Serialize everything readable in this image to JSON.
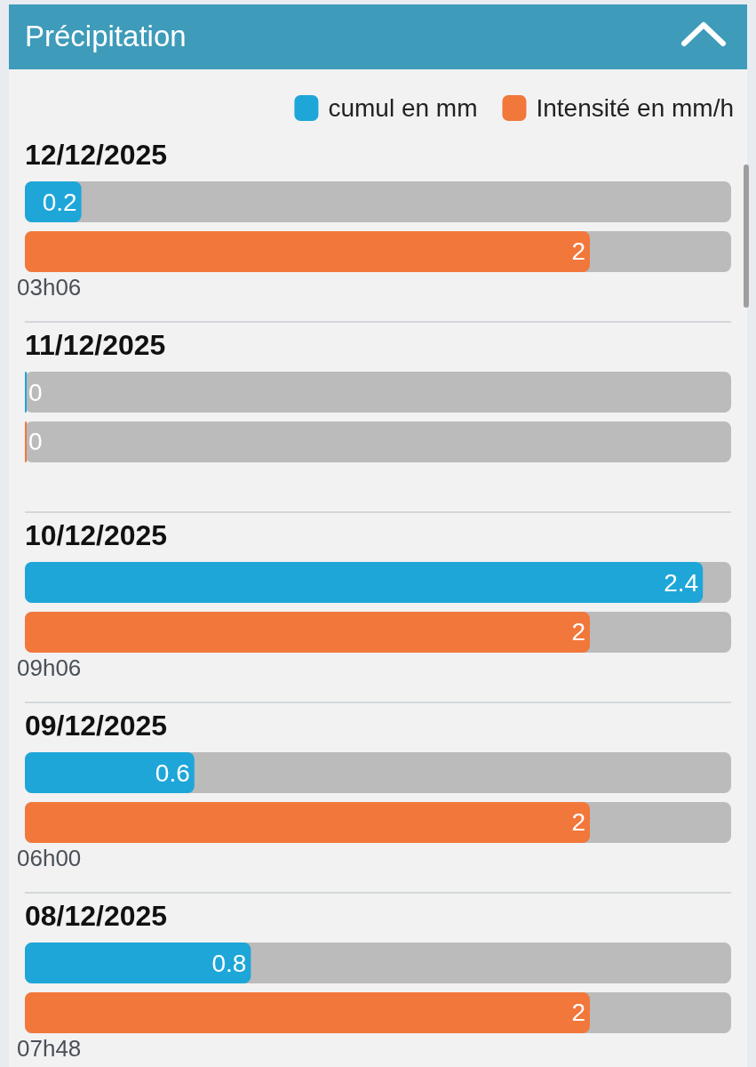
{
  "chart_data": {
    "type": "bar",
    "title": "Précipitation",
    "orientation": "horizontal",
    "categories": [
      "12/12/2025",
      "11/12/2025",
      "10/12/2025",
      "09/12/2025",
      "08/12/2025"
    ],
    "series": [
      {
        "name": "cumul en mm",
        "color": "#1ea6d8",
        "values": [
          0.2,
          0,
          2.4,
          0.6,
          0.8
        ]
      },
      {
        "name": "Intensité en mm/h",
        "color": "#f2773b",
        "values": [
          2,
          0,
          2,
          2,
          2
        ]
      }
    ],
    "data_labels": true,
    "legend": "top right",
    "tick_labels": "y",
    "grid": "y",
    "annotations": [
      "03h06",
      "09h06",
      "06h00",
      "07h48"
    ]
  }
}
